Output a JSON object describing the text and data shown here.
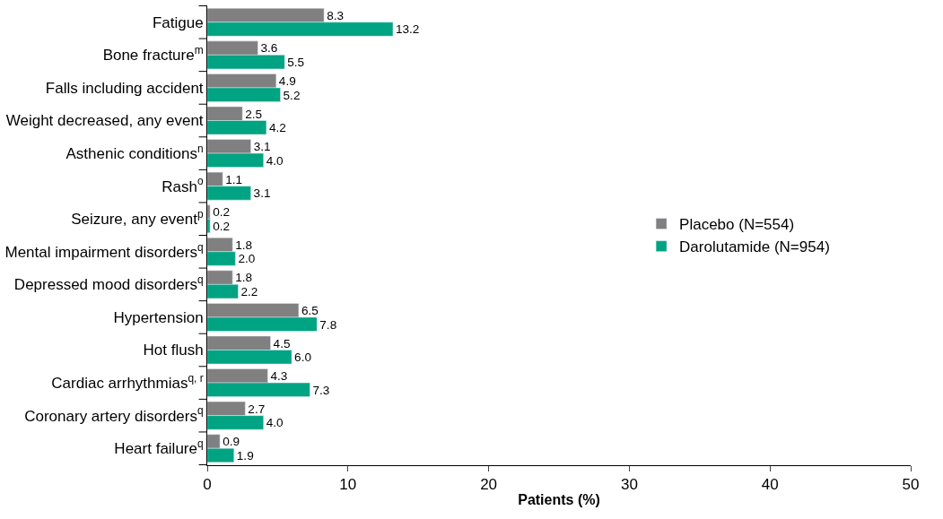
{
  "chart_data": {
    "type": "bar",
    "orientation": "horizontal",
    "xlabel": "Patients (%)",
    "categories": [
      "Fatigue",
      "Bone fracture$^{m}$",
      "Falls including accident",
      "Weight decreased, any event",
      "Asthenic conditions$^{n}$",
      "Rash$^{o}$",
      "Seizure, any event$^{p}$",
      "Mental impairment disorders$^{q}$",
      "Depressed mood disorders$^{q}$",
      "Hypertension",
      "Hot flush",
      "Cardiac arrhythmias$^{q, r}$",
      "Coronary artery disorders$^{q}$",
      "Heart failure$^{q}$"
    ],
    "series": [
      {
        "name": "Placebo (N=554)",
        "color": "#808080",
        "values": [
          8.3,
          3.6,
          4.9,
          2.5,
          3.1,
          1.1,
          0.2,
          1.8,
          1.8,
          6.5,
          4.5,
          4.3,
          2.7,
          0.9
        ],
        "value_labels": [
          "8.3",
          "3.6",
          "4.9",
          "2.5",
          "3.1",
          "1.1",
          "0.2",
          "1.8",
          "1.8",
          "6.5",
          "4.5",
          "4.3",
          "2.7",
          "0.9"
        ]
      },
      {
        "name": "Darolutamide (N=954)",
        "color": "#00a382",
        "values": [
          13.2,
          5.5,
          5.2,
          4.2,
          4.0,
          3.1,
          0.2,
          2.0,
          2.2,
          7.8,
          6.0,
          7.3,
          4.0,
          1.9
        ],
        "value_labels": [
          "13.2",
          "5.5",
          "5.2",
          "4.2",
          "4.0",
          "3.1",
          "0.2",
          "2.0",
          "2.2",
          "7.8",
          "6.0",
          "7.3",
          "4.0",
          "1.9"
        ]
      }
    ],
    "xlim": [
      0,
      50
    ],
    "xticks": [
      0,
      10,
      20,
      30,
      40,
      50
    ],
    "legend": "right"
  }
}
